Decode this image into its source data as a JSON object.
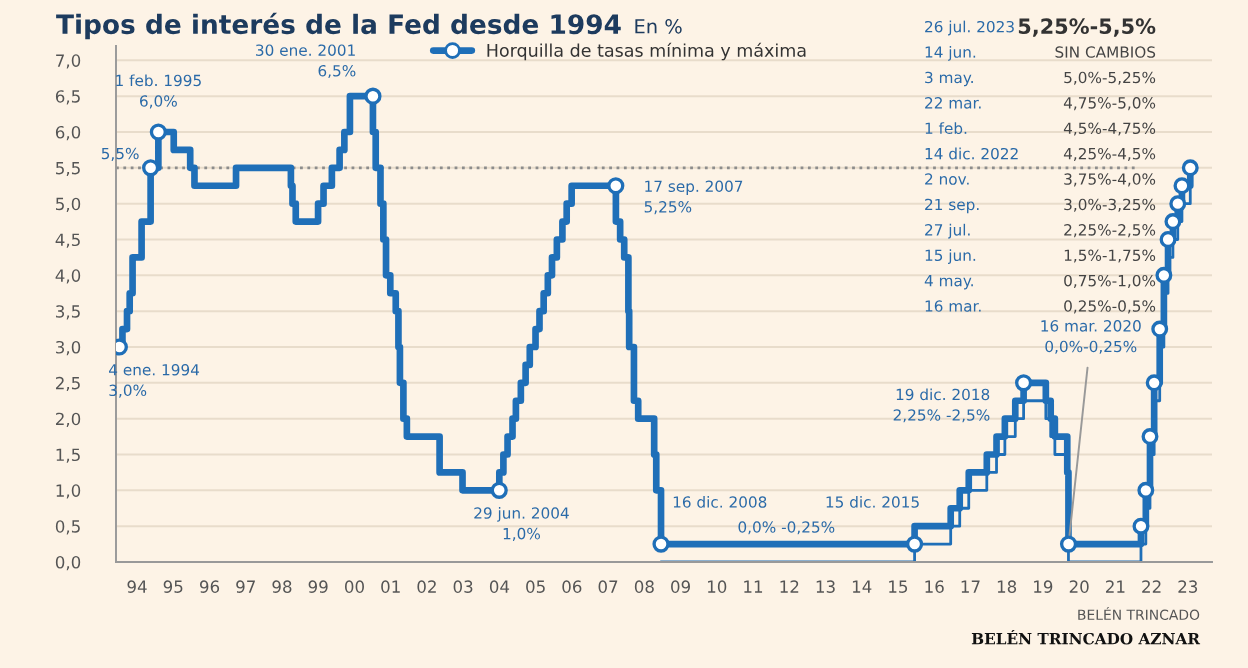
{
  "chart_data": {
    "type": "step",
    "title": "Tipos de interés de la Fed desde 1994",
    "subtitle": "En %",
    "series": [
      {
        "name": "Horquilla de tasas mínima y máxima",
        "color": "#1f6fb8",
        "x": [
          "1994-01-04",
          "1994-02-04",
          "1994-03-22",
          "1994-04-18",
          "1994-05-17",
          "1994-08-16",
          "1994-11-15",
          "1995-02-01",
          "1995-07-06",
          "1995-12-19",
          "1996-01-31",
          "1997-03-25",
          "1998-09-29",
          "1998-10-15",
          "1998-11-17",
          "1999-06-30",
          "1999-08-24",
          "1999-11-16",
          "2000-02-02",
          "2000-03-21",
          "2000-05-16",
          "2001-01-03",
          "2001-01-31",
          "2001-03-20",
          "2001-04-18",
          "2001-05-15",
          "2001-06-27",
          "2001-08-21",
          "2001-09-17",
          "2001-10-02",
          "2001-11-06",
          "2001-12-11",
          "2002-11-06",
          "2003-06-25",
          "2004-06-30",
          "2004-08-10",
          "2004-09-21",
          "2004-11-10",
          "2004-12-14",
          "2005-02-02",
          "2005-03-22",
          "2005-05-03",
          "2005-06-30",
          "2005-08-09",
          "2005-09-20",
          "2005-11-01",
          "2005-12-13",
          "2006-01-31",
          "2006-03-28",
          "2006-05-10",
          "2006-06-29",
          "2007-09-18",
          "2007-10-31",
          "2007-12-11",
          "2008-01-22",
          "2008-01-30",
          "2008-03-18",
          "2008-04-30",
          "2008-10-08",
          "2008-10-29",
          "2008-12-16",
          "2015-12-16",
          "2016-12-14",
          "2017-03-15",
          "2017-06-14",
          "2017-12-13",
          "2018-03-21",
          "2018-06-13",
          "2018-09-26",
          "2018-12-19",
          "2019-07-31",
          "2019-09-18",
          "2019-10-30",
          "2020-03-03",
          "2020-03-15",
          "2022-03-16",
          "2022-05-04",
          "2022-06-15",
          "2022-07-27",
          "2022-09-21",
          "2022-11-02",
          "2022-12-14",
          "2023-02-01",
          "2023-03-22",
          "2023-05-03",
          "2023-07-26"
        ],
        "values": [
          3.0,
          3.25,
          3.5,
          3.75,
          4.25,
          4.75,
          5.5,
          6.0,
          5.75,
          5.5,
          5.25,
          5.5,
          5.25,
          5.0,
          4.75,
          5.0,
          5.25,
          5.5,
          5.75,
          6.0,
          6.5,
          6.0,
          5.5,
          5.0,
          4.5,
          4.0,
          3.75,
          3.5,
          3.0,
          2.5,
          2.0,
          1.75,
          1.25,
          1.0,
          1.25,
          1.5,
          1.75,
          2.0,
          2.25,
          2.5,
          2.75,
          3.0,
          3.25,
          3.5,
          3.75,
          4.0,
          4.25,
          4.5,
          4.75,
          5.0,
          5.25,
          4.75,
          4.5,
          4.25,
          3.5,
          3.0,
          2.25,
          2.0,
          1.5,
          1.0,
          0.25,
          0.5,
          0.75,
          1.0,
          1.25,
          1.5,
          1.75,
          2.0,
          2.25,
          2.5,
          2.25,
          2.0,
          1.75,
          1.25,
          0.25,
          0.5,
          1.0,
          1.75,
          2.5,
          3.25,
          4.0,
          4.5,
          4.75,
          5.0,
          5.25,
          5.5
        ]
      },
      {
        "color": "#1f6fb8",
        "x": [
          "2008-12-16",
          "2015-12-16",
          "2016-12-14",
          "2017-03-15",
          "2017-06-14",
          "2017-12-13",
          "2018-03-21",
          "2018-06-13",
          "2018-09-26",
          "2018-12-19",
          "2019-07-31",
          "2019-09-18",
          "2019-10-30",
          "2020-03-03",
          "2020-03-15",
          "2022-03-16",
          "2022-05-04",
          "2022-06-15",
          "2022-07-27",
          "2022-09-21",
          "2022-11-02",
          "2022-12-14",
          "2023-02-01",
          "2023-03-22",
          "2023-05-03",
          "2023-07-26"
        ],
        "values": [
          0.0,
          0.25,
          0.5,
          0.75,
          1.0,
          1.25,
          1.5,
          1.75,
          2.0,
          2.25,
          2.0,
          1.75,
          1.5,
          1.0,
          0.0,
          0.25,
          0.75,
          1.5,
          2.25,
          3.0,
          3.75,
          4.25,
          4.5,
          4.75,
          5.0,
          5.25
        ]
      },
      {
        "type": "scatter",
        "color": "#1f6fb8",
        "x": [
          "2022-03-16",
          "2022-05-04",
          "2022-06-15",
          "2022-07-27",
          "2022-09-21",
          "2022-11-02",
          "2022-12-14",
          "2023-02-01",
          "2023-03-22",
          "2023-05-03",
          "2023-07-26"
        ],
        "values": [
          0.5,
          1.0,
          1.75,
          2.5,
          3.25,
          4.0,
          4.5,
          4.75,
          5.0,
          5.25,
          5.5
        ]
      }
    ],
    "xlim": [
      "1993-12-01",
      "2024-03-01"
    ],
    "xticks": [
      {
        "value": "1994-07-01",
        "label": "94"
      },
      {
        "value": "1995-07-01",
        "label": "95"
      },
      {
        "value": "1996-07-01",
        "label": "96"
      },
      {
        "value": "1997-07-01",
        "label": "97"
      },
      {
        "value": "1998-07-01",
        "label": "98"
      },
      {
        "value": "1999-07-01",
        "label": "99"
      },
      {
        "value": "2000-07-01",
        "label": "00"
      },
      {
        "value": "2001-07-01",
        "label": "01"
      },
      {
        "value": "2002-07-01",
        "label": "02"
      },
      {
        "value": "2003-07-01",
        "label": "03"
      },
      {
        "value": "2004-07-01",
        "label": "04"
      },
      {
        "value": "2005-07-01",
        "label": "05"
      },
      {
        "value": "2006-07-01",
        "label": "06"
      },
      {
        "value": "2007-07-01",
        "label": "07"
      },
      {
        "value": "2008-07-01",
        "label": "08"
      },
      {
        "value": "2009-07-01",
        "label": "09"
      },
      {
        "value": "2010-07-01",
        "label": "10"
      },
      {
        "value": "2011-07-01",
        "label": "11"
      },
      {
        "value": "2012-07-01",
        "label": "12"
      },
      {
        "value": "2013-07-01",
        "label": "13"
      },
      {
        "value": "2014-07-01",
        "label": "14"
      },
      {
        "value": "2015-07-01",
        "label": "15"
      },
      {
        "value": "2016-07-01",
        "label": "16"
      },
      {
        "value": "2017-07-01",
        "label": "17"
      },
      {
        "value": "2018-07-01",
        "label": "18"
      },
      {
        "value": "2019-07-01",
        "label": "19"
      },
      {
        "value": "2020-07-01",
        "label": "20"
      },
      {
        "value": "2021-07-01",
        "label": "21"
      },
      {
        "value": "2022-07-01",
        "label": "22"
      },
      {
        "value": "2023-07-01",
        "label": "23"
      }
    ],
    "ylim": [
      0,
      7.2
    ],
    "yticks": [
      {
        "value": 0,
        "label": "0,0"
      },
      {
        "value": 0.5,
        "label": "0,5"
      },
      {
        "value": 1,
        "label": "1,0"
      },
      {
        "value": 1.5,
        "label": "1,5"
      },
      {
        "value": 2,
        "label": "2,0"
      },
      {
        "value": 2.5,
        "label": "2,5"
      },
      {
        "value": 3,
        "label": "3,0"
      },
      {
        "value": 3.5,
        "label": "3,5"
      },
      {
        "value": 4,
        "label": "4,0"
      },
      {
        "value": 4.5,
        "label": "4,5"
      },
      {
        "value": 5,
        "label": "5,0"
      },
      {
        "value": 5.5,
        "label": "5,5"
      },
      {
        "value": 6,
        "label": "6,0"
      },
      {
        "value": 6.5,
        "label": "6,5"
      },
      {
        "value": 7,
        "label": "7,0"
      }
    ],
    "grid": "y",
    "legend": "top",
    "line_style": "solid",
    "ref_lines": [
      {
        "axis": "y",
        "value": 5.5,
        "color": "#8c8c8c",
        "line_style": "dotted"
      }
    ],
    "annotations": [
      {
        "text": "4 ene. 1994\n3,0%",
        "x": "1994-01-04",
        "y": 3.0
      },
      {
        "text": "5,5%",
        "x": "1994-11-15",
        "y": 5.5
      },
      {
        "text": "1 feb. 1995\n6,0%",
        "x": "1995-02-01",
        "y": 6.0
      },
      {
        "text": "30 ene. 2001\n6,5%",
        "x": "2001-01-03",
        "y": 6.5
      },
      {
        "text": "29 jun. 2004\n1,0%",
        "x": "2004-06-29",
        "y": 1.0
      },
      {
        "text": "17 sep. 2007\n5,25%",
        "x": "2007-09-17",
        "y": 5.25
      },
      {
        "text": "16 dic. 2008",
        "x": "2008-12-16",
        "y": 0.25
      },
      {
        "text": "0,0% -0,25%",
        "x": "2012-06-01",
        "y": 0.25
      },
      {
        "text": "15 dic. 2015",
        "x": "2015-12-16",
        "y": 0.25
      },
      {
        "text": "19 dic. 2018\n2,25% -2,5%",
        "x": "2018-12-19",
        "y": 2.5
      },
      {
        "text": "16 mar. 2020\n0,0%-0,25%",
        "x": "2020-03-16",
        "y": 0.25
      },
      "26 jul. 2023",
      "5,25%-5,5%",
      "14 jun.",
      "SIN CAMBIOS",
      "3 may.",
      "5,0%-5,25%",
      "22 mar.",
      "4,75%-5,0%",
      "1 feb.",
      "4,5%-4,75%",
      "14 dic. 2022",
      "4,25%-4,5%",
      "2 nov.",
      "3,75%-4,0%",
      "21 sep.",
      "3,0%-3,25%",
      "27 jul.",
      "2,25%-2,5%",
      "15 jun.",
      "1,5%-1,75%",
      "4 may.",
      "0,75%-1,0%",
      "16 mar.",
      "0,25%-0,5%",
      "BELÉN TRINCADO",
      "BELÉN TRINCADO AZNAR"
    ]
  }
}
